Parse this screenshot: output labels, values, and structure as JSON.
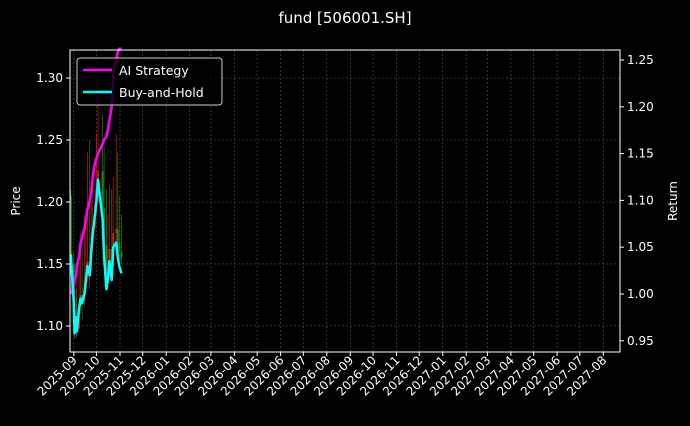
{
  "chart_data": {
    "type": "line",
    "title": "fund [506001.SH]",
    "ylabel_left": "Price",
    "ylabel_right": "Return",
    "xlim": [
      "2025-08-27",
      "2027-08-23"
    ],
    "ylim_left": [
      1.079,
      1.3226
    ],
    "ylim_right": [
      0.938,
      1.2607
    ],
    "grid": true,
    "legend_position": "top-left",
    "x_ticks": [
      "2025-09",
      "2025-10",
      "2025-11",
      "2025-12",
      "2026-01",
      "2026-02",
      "2026-03",
      "2026-04",
      "2026-05",
      "2026-06",
      "2026-07",
      "2026-08",
      "2026-09",
      "2026-10",
      "2026-11",
      "2026-12",
      "2027-01",
      "2027-02",
      "2027-03",
      "2027-04",
      "2027-05",
      "2027-06",
      "2027-07",
      "2027-08"
    ],
    "y_ticks_left": [
      "1.10",
      "1.15",
      "1.20",
      "1.25",
      "1.30"
    ],
    "y_ticks_right": [
      "0.95",
      "1.00",
      "1.05",
      "1.10",
      "1.15",
      "1.20",
      "1.25"
    ],
    "colors": {
      "background": "#000000",
      "up": "#ff1a00",
      "down": "#1f9e1f",
      "ai": "#ff00ff",
      "bh": "#00ffff"
    },
    "dates": [
      "2025-08-28",
      "2025-08-29",
      "2025-09-01",
      "2025-09-02",
      "2025-09-04",
      "2025-09-05",
      "2025-09-08",
      "2025-09-10",
      "2025-09-12",
      "2025-09-15",
      "2025-09-17",
      "2025-09-19",
      "2025-09-22",
      "2025-09-24",
      "2025-09-26",
      "2025-09-29",
      "2025-10-01",
      "2025-10-03",
      "2025-10-09",
      "2025-10-11",
      "2025-10-14",
      "2025-10-16",
      "2025-10-18",
      "2025-10-21",
      "2025-10-23",
      "2025-10-27",
      "2025-10-29",
      "2025-10-31",
      "2025-11-03"
    ],
    "candles": {
      "open": [
        1.16,
        1.157,
        1.15,
        1.118,
        1.095,
        1.105,
        1.098,
        1.115,
        1.125,
        1.12,
        1.13,
        1.14,
        1.152,
        1.145,
        1.165,
        1.18,
        1.198,
        1.21,
        1.225,
        1.195,
        1.165,
        1.14,
        1.148,
        1.162,
        1.148,
        1.175,
        1.178,
        1.168,
        1.16
      ],
      "high": [
        1.21,
        1.205,
        1.16,
        1.13,
        1.14,
        1.13,
        1.15,
        1.175,
        1.17,
        1.19,
        1.195,
        1.24,
        1.25,
        1.2,
        1.225,
        1.235,
        1.255,
        1.3,
        1.27,
        1.245,
        1.21,
        1.19,
        1.215,
        1.21,
        1.22,
        1.255,
        1.24,
        1.205,
        1.19
      ],
      "low": [
        1.14,
        1.13,
        1.105,
        1.09,
        1.09,
        1.092,
        1.095,
        1.11,
        1.105,
        1.115,
        1.125,
        1.135,
        1.13,
        1.14,
        1.16,
        1.17,
        1.19,
        1.2,
        1.185,
        1.16,
        1.135,
        1.13,
        1.14,
        1.14,
        1.14,
        1.165,
        1.16,
        1.15,
        1.15
      ],
      "close": [
        1.157,
        1.15,
        1.118,
        1.095,
        1.105,
        1.098,
        1.115,
        1.125,
        1.12,
        1.13,
        1.14,
        1.152,
        1.145,
        1.165,
        1.18,
        1.198,
        1.21,
        1.225,
        1.195,
        1.165,
        1.14,
        1.148,
        1.162,
        1.148,
        1.175,
        1.178,
        1.168,
        1.16,
        1.155
      ]
    },
    "series": [
      {
        "name": "AI Strategy",
        "values": [
          1.0,
          1.002,
          1.01,
          1.015,
          1.02,
          1.03,
          1.04,
          1.055,
          1.06,
          1.07,
          1.078,
          1.09,
          1.1,
          1.108,
          1.125,
          1.14,
          1.145,
          1.15,
          1.16,
          1.165,
          1.168,
          1.175,
          1.185,
          1.2,
          1.235,
          1.25,
          1.258,
          1.262,
          1.262
        ]
      },
      {
        "name": "Buy-and-Hold",
        "values": [
          1.042,
          1.03,
          0.99,
          0.958,
          0.975,
          0.96,
          0.985,
          0.995,
          0.99,
          1.0,
          1.015,
          1.03,
          1.02,
          1.045,
          1.065,
          1.085,
          1.1,
          1.122,
          1.08,
          1.04,
          1.005,
          1.015,
          1.035,
          1.015,
          1.05,
          1.055,
          1.04,
          1.03,
          1.022
        ]
      }
    ]
  }
}
